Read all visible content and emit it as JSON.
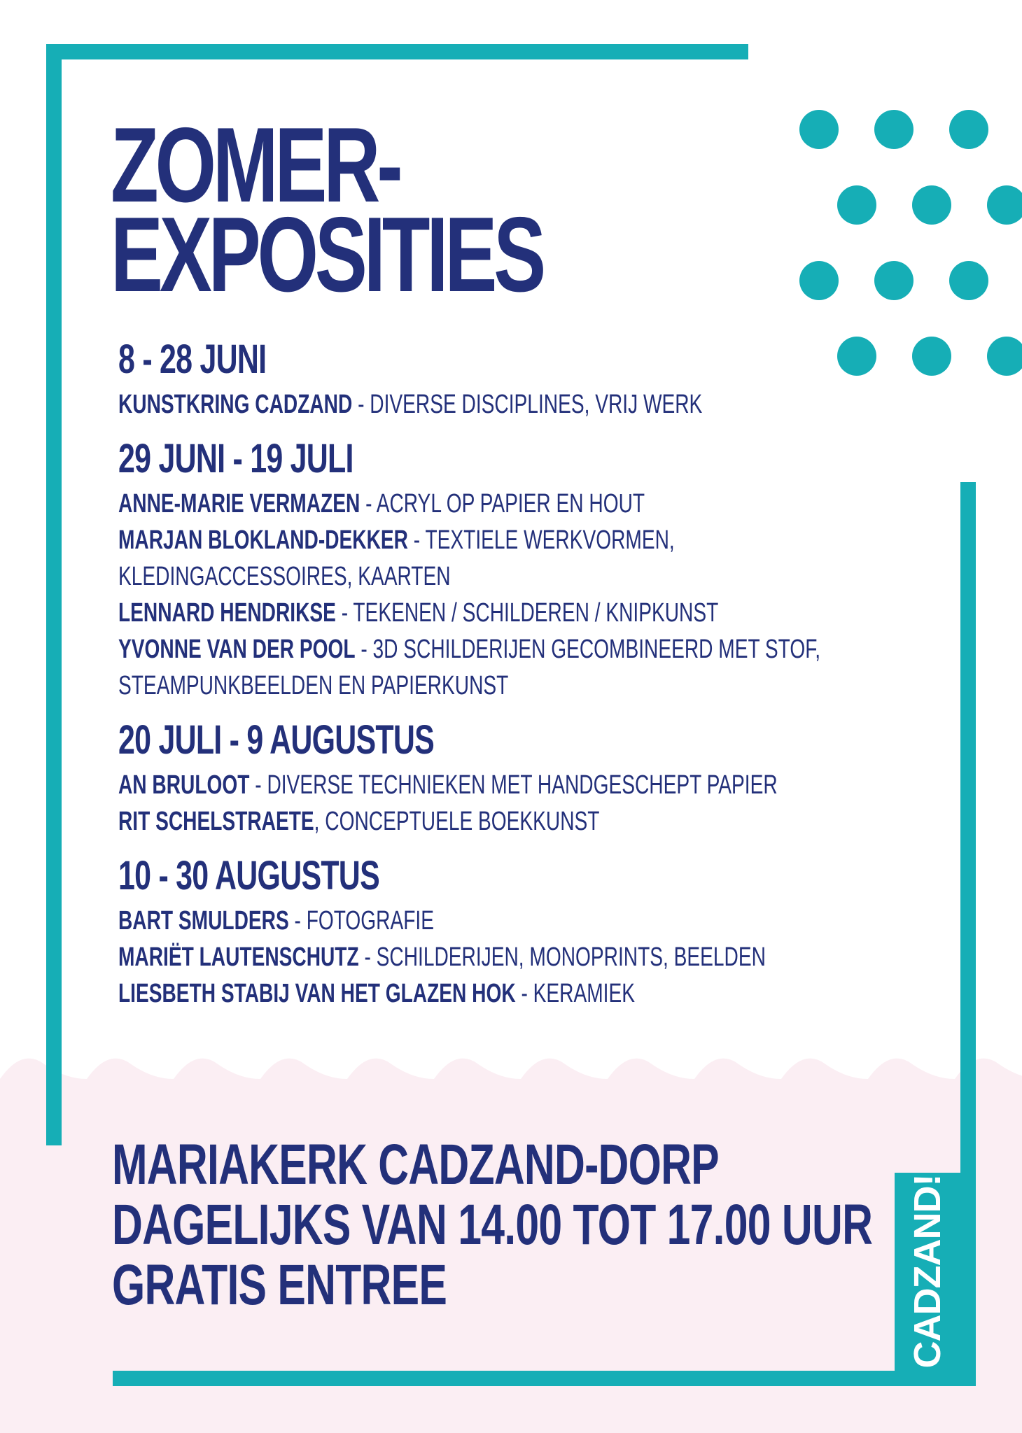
{
  "colors": {
    "accent": "#16aeb6",
    "text": "#23307a",
    "wave": "#fbeef3",
    "background": "#ffffff"
  },
  "title": {
    "line1": "ZOMER-",
    "line2": "EXPOSITIES"
  },
  "periods": [
    {
      "date": "8 - 28 JUNI",
      "entries": [
        {
          "name": "KUNSTKRING CADZAND",
          "desc": " - DIVERSE DISCIPLINES, VRIJ WERK"
        }
      ]
    },
    {
      "date": "29 JUNI - 19 JULI",
      "entries": [
        {
          "name": "ANNE-MARIE VERMAZEN",
          "desc": " - ACRYL OP PAPIER EN HOUT"
        },
        {
          "name": "MARJAN BLOKLAND-DEKKER",
          "desc": " - TEXTIELE WERKVORMEN,",
          "cont": "KLEDINGACCESSOIRES, KAARTEN"
        },
        {
          "name": "LENNARD HENDRIKSE",
          "desc": " - TEKENEN / SCHILDEREN / KNIPKUNST"
        },
        {
          "name": "YVONNE VAN DER POOL",
          "desc": " - 3D SCHILDERIJEN GECOMBINEERD MET STOF,",
          "cont": "STEAMPUNKBEELDEN EN PAPIERKUNST"
        }
      ]
    },
    {
      "date": "20 JULI - 9 AUGUSTUS",
      "entries": [
        {
          "name": "AN BRULOOT",
          "desc": " - DIVERSE TECHNIEKEN MET HANDGESCHEPT PAPIER"
        },
        {
          "name": "RIT SCHELSTRAETE",
          "desc": ", CONCEPTUELE BOEKKUNST"
        }
      ]
    },
    {
      "date": "10 - 30 AUGUSTUS",
      "entries": [
        {
          "name": "BART SMULDERS",
          "desc": " - FOTOGRAFIE"
        },
        {
          "name": "MARIËT LAUTENSCHUTZ",
          "desc": " - SCHILDERIJEN, MONOPRINTS, BEELDEN"
        },
        {
          "name": "LIESBETH STABIJ VAN HET GLAZEN HOK",
          "desc": " -  KERAMIEK"
        }
      ]
    }
  ],
  "footer": {
    "line1": "MARIAKERK CADZAND-DORP",
    "line2": "DAGELIJKS VAN 14.00 TOT 17.00 UUR",
    "line3": "GRATIS ENTREE"
  },
  "badge": {
    "text": "CADZAND!"
  }
}
